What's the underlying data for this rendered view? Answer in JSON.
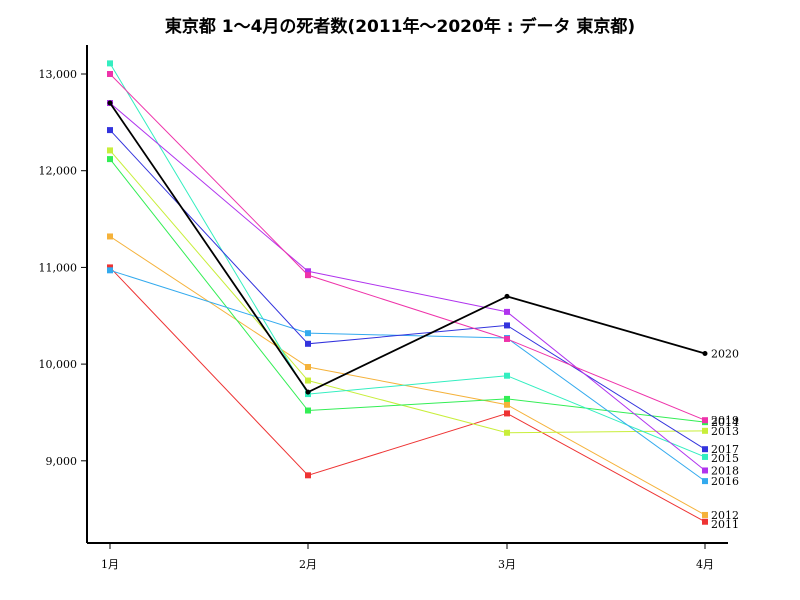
{
  "chart_data": {
    "type": "line",
    "title": "東京都 1〜4月の死者数(2011年〜2020年 : データ 東京都)",
    "xlabel": "",
    "ylabel": "",
    "categories": [
      "1月",
      "2月",
      "3月",
      "4月"
    ],
    "ylim": [
      8150,
      13300
    ],
    "yticks": [
      9000,
      10000,
      11000,
      12000,
      13000
    ],
    "ytick_labels": [
      "9,000",
      "10,000",
      "11,000",
      "12,000",
      "13,000"
    ],
    "grid": false,
    "legend": "labels at line ends (right)",
    "series": [
      {
        "name": "2011",
        "color": "#ee3333",
        "values": [
          11000,
          8850,
          9490,
          8370
        ]
      },
      {
        "name": "2012",
        "color": "#f5b23a",
        "values": [
          11320,
          9970,
          9580,
          8440
        ]
      },
      {
        "name": "2013",
        "color": "#c8ee3a",
        "values": [
          12210,
          9830,
          9290,
          9310
        ]
      },
      {
        "name": "2014",
        "color": "#33ee55",
        "values": [
          12120,
          9520,
          9640,
          9400
        ]
      },
      {
        "name": "2015",
        "color": "#33eec0",
        "values": [
          13110,
          9690,
          9880,
          9040
        ]
      },
      {
        "name": "2016",
        "color": "#33aaee",
        "values": [
          10970,
          10320,
          10270,
          8790
        ]
      },
      {
        "name": "2017",
        "color": "#3333dd",
        "values": [
          12420,
          10210,
          10400,
          9120
        ]
      },
      {
        "name": "2018",
        "color": "#b033ee",
        "values": [
          12700,
          10960,
          10540,
          8900
        ]
      },
      {
        "name": "2019",
        "color": "#ee33aa",
        "values": [
          13000,
          10920,
          10260,
          9420
        ]
      },
      {
        "name": "2020",
        "color": "#000000",
        "values": [
          12700,
          9710,
          10700,
          10110
        ]
      }
    ]
  }
}
